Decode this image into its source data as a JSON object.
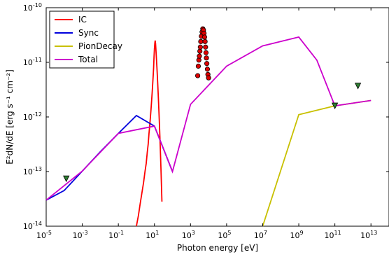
{
  "chart_data": {
    "type": "line",
    "xlabel": "Photon energy [eV]",
    "ylabel": "E²dN/dE [erg s⁻¹ cm⁻²]",
    "x_scale": "log",
    "y_scale": "log",
    "xlim": [
      1e-05,
      100000000000000.0
    ],
    "ylim": [
      1e-14,
      1e-10
    ],
    "x_ticks": [
      {
        "value": 1e-05,
        "label": "10",
        "exp": "-5"
      },
      {
        "value": 0.001,
        "label": "10",
        "exp": "-3"
      },
      {
        "value": 0.1,
        "label": "10",
        "exp": "-1"
      },
      {
        "value": 10.0,
        "label": "10",
        "exp": "1"
      },
      {
        "value": 1000.0,
        "label": "10",
        "exp": "3"
      },
      {
        "value": 100000.0,
        "label": "10",
        "exp": "5"
      },
      {
        "value": 10000000.0,
        "label": "10",
        "exp": "7"
      },
      {
        "value": 1000000000.0,
        "label": "10",
        "exp": "9"
      },
      {
        "value": 100000000000.0,
        "label": "10",
        "exp": "11"
      },
      {
        "value": 10000000000000.0,
        "label": "10",
        "exp": "13"
      }
    ],
    "y_ticks": [
      {
        "value": 1e-14,
        "label": "10",
        "exp": "-14"
      },
      {
        "value": 1e-13,
        "label": "10",
        "exp": "-13"
      },
      {
        "value": 1e-12,
        "label": "10",
        "exp": "-12"
      },
      {
        "value": 1e-11,
        "label": "10",
        "exp": "-11"
      },
      {
        "value": 1e-10,
        "label": "10",
        "exp": "-10"
      }
    ],
    "legend": {
      "placement": "top-left"
    },
    "series": [
      {
        "name": "IC",
        "color": "#ff0000",
        "points": [
          [
            1,
            1e-14
          ],
          [
            1.3,
            1.58e-14
          ],
          [
            1.6,
            2.51e-14
          ],
          [
            2,
            3.98e-14
          ],
          [
            2.5,
            6.31e-14
          ],
          [
            3,
            1e-13
          ],
          [
            3.5,
            1.41e-13
          ],
          [
            4,
            2.24e-13
          ],
          [
            4.5,
            3.16e-13
          ],
          [
            5,
            5.01e-13
          ],
          [
            5.5,
            7.08e-13
          ],
          [
            6,
            1e-12
          ],
          [
            6.5,
            1.41e-12
          ],
          [
            7,
            2e-12
          ],
          [
            7.5,
            2.82e-12
          ],
          [
            8,
            3.98e-12
          ],
          [
            8.5,
            5.62e-12
          ],
          [
            9,
            7.94e-12
          ],
          [
            9.5,
            1.26e-11
          ],
          [
            10,
            1.78e-11
          ],
          [
            10.5,
            2.24e-11
          ],
          [
            11,
            2.51e-11
          ],
          [
            11.5,
            2.24e-11
          ],
          [
            12,
            1.78e-11
          ],
          [
            12.5,
            1.41e-11
          ],
          [
            13,
            1.12e-11
          ],
          [
            13.5,
            8.91e-12
          ],
          [
            14,
            7.08e-12
          ],
          [
            14.5,
            5.62e-12
          ],
          [
            15,
            4.47e-12
          ],
          [
            15.5,
            3.55e-12
          ],
          [
            16,
            2.82e-12
          ],
          [
            16.5,
            2.24e-12
          ],
          [
            17,
            1.78e-12
          ],
          [
            17.5,
            1.41e-12
          ],
          [
            18,
            1.12e-12
          ],
          [
            18.5,
            8.91e-13
          ],
          [
            19,
            7.08e-13
          ],
          [
            19.5,
            5.62e-13
          ],
          [
            20,
            4.47e-13
          ],
          [
            20.5,
            3.55e-13
          ],
          [
            21,
            2.82e-13
          ],
          [
            21.5,
            2.24e-13
          ],
          [
            22,
            1.78e-13
          ],
          [
            22.5,
            1.41e-13
          ],
          [
            23,
            1.12e-13
          ],
          [
            23.5,
            8.91e-14
          ],
          [
            24,
            7.08e-14
          ],
          [
            24.5,
            5.62e-14
          ],
          [
            25,
            4.47e-14
          ],
          [
            25.5,
            3.55e-14
          ],
          [
            26,
            2.82e-14
          ]
        ]
      },
      {
        "name": "Sync",
        "color": "#0000dd",
        "points": [
          [
            1e-05,
            3e-14
          ],
          [
            0.0001,
            4.5e-14
          ],
          [
            0.001,
            1.02e-13
          ],
          [
            0.01,
            2.3e-13
          ],
          [
            0.1,
            5e-13
          ],
          [
            1,
            1.06e-12
          ],
          [
            10.0,
            6.8e-13
          ],
          [
            100.0,
            1e-13
          ]
        ]
      },
      {
        "name": "PionDecay",
        "color": "#c8c000",
        "points": [
          [
            10000000.0,
            1e-14
          ],
          [
            1000000000.0,
            1.1e-12
          ],
          [
            100000000000.0,
            1.6e-12
          ],
          [
            10000000000000.0,
            2e-12
          ]
        ]
      },
      {
        "name": "Total",
        "color": "#cc00cc",
        "points": [
          [
            1e-05,
            3e-14
          ],
          [
            0.001,
            1.02e-13
          ],
          [
            0.1,
            5e-13
          ],
          [
            10.0,
            6.8e-13
          ],
          [
            100.0,
            1e-13
          ],
          [
            1000.0,
            1.7e-12
          ],
          [
            100000.0,
            8.5e-12
          ],
          [
            10000000.0,
            2e-11
          ],
          [
            1000000000.0,
            2.9e-11
          ],
          [
            10000000000.0,
            1.1e-11
          ],
          [
            100000000000.0,
            1.6e-12
          ],
          [
            10000000000000.0,
            2e-12
          ]
        ]
      }
    ],
    "data_points": [
      {
        "x": 2500.0,
        "y": 5.7e-12
      },
      {
        "x": 2700.0,
        "y": 8.5e-12
      },
      {
        "x": 2900.0,
        "y": 1.1e-11
      },
      {
        "x": 3100.0,
        "y": 1.3e-11
      },
      {
        "x": 3300.0,
        "y": 1.6e-11
      },
      {
        "x": 3500.0,
        "y": 1.9e-11
      },
      {
        "x": 3700.0,
        "y": 2.4e-11
      },
      {
        "x": 4000.0,
        "y": 3e-11
      },
      {
        "x": 4400.0,
        "y": 3.6e-11
      },
      {
        "x": 4800.0,
        "y": 4.1e-11
      },
      {
        "x": 5200.0,
        "y": 3.9e-11
      },
      {
        "x": 5600.0,
        "y": 3.4e-11
      },
      {
        "x": 6000.0,
        "y": 2.9e-11
      },
      {
        "x": 6400.0,
        "y": 2.4e-11
      },
      {
        "x": 6800.0,
        "y": 1.9e-11
      },
      {
        "x": 7200.0,
        "y": 1.5e-11
      },
      {
        "x": 7600.0,
        "y": 1.2e-11
      },
      {
        "x": 8000.0,
        "y": 9.5e-12
      },
      {
        "x": 8600.0,
        "y": 7.5e-12
      },
      {
        "x": 9200.0,
        "y": 6e-12
      },
      {
        "x": 10000.0,
        "y": 5.2e-12
      }
    ],
    "upper_limits": [
      {
        "x": 0.00013,
        "y": 7.4e-14
      },
      {
        "x": 100000000000.0,
        "y": 1.6e-12
      },
      {
        "x": 1900000000000.0,
        "y": 3.7e-12
      }
    ]
  }
}
